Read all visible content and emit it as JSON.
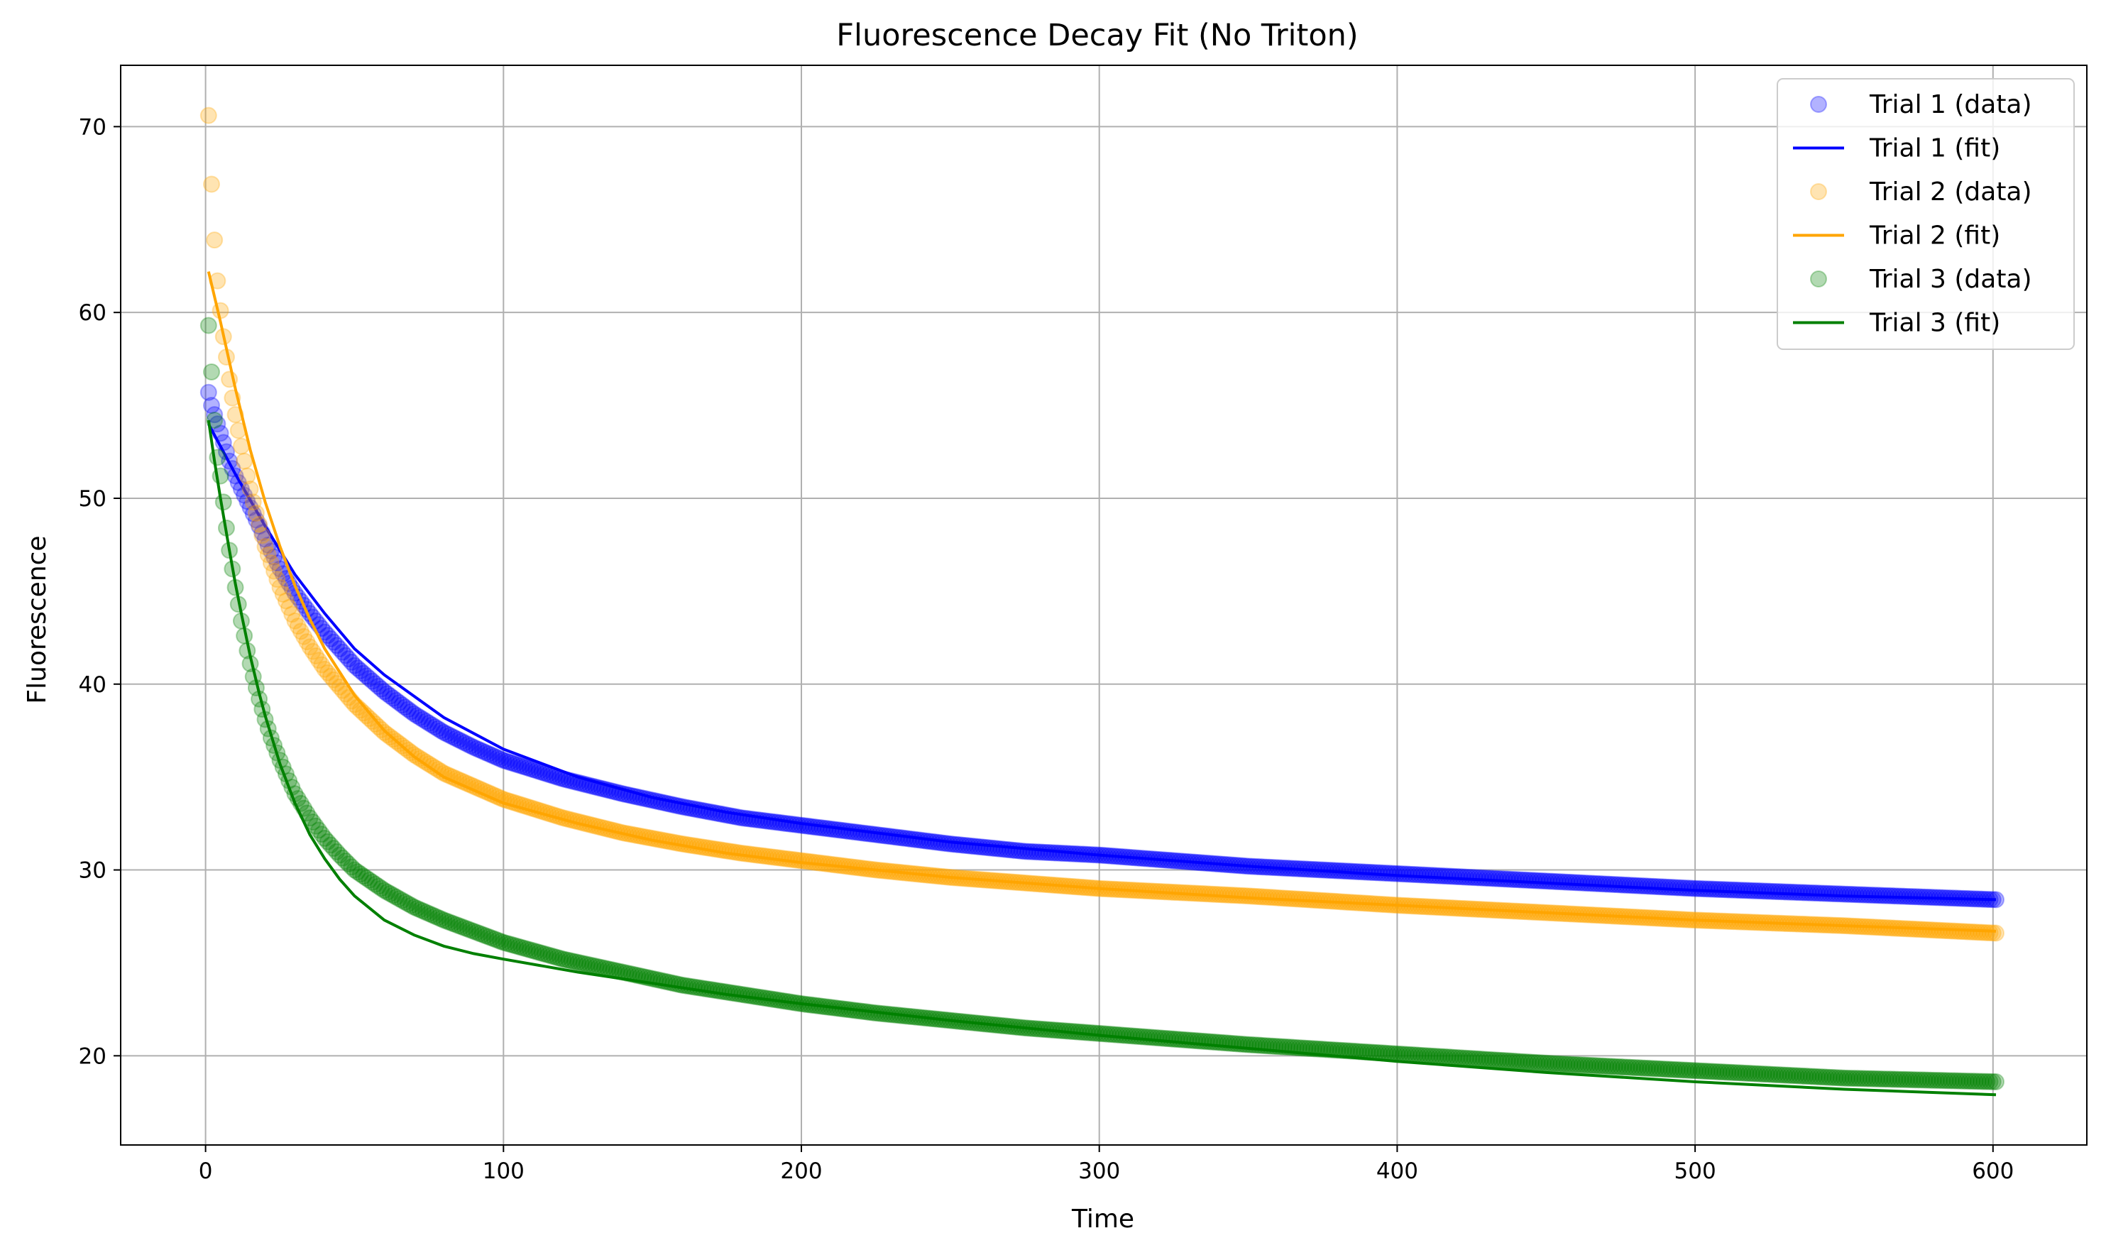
{
  "chart_data": {
    "type": "scatter",
    "title": "Fluorescence Decay Fit (No Triton)",
    "xlabel": "Time",
    "ylabel": "Fluorescence",
    "xlim": [
      -28.5,
      631.5
    ],
    "ylim": [
      15.2,
      73.3
    ],
    "xticks": [
      0,
      100,
      200,
      300,
      400,
      500,
      600
    ],
    "yticks": [
      20,
      30,
      40,
      50,
      60,
      70
    ],
    "grid": true,
    "legend_position": "top-right",
    "x_range_data": [
      1,
      601
    ],
    "series": [
      {
        "name": "Trial 1 (data)",
        "kind": "scatter",
        "color": "#0000ff",
        "x": [
          1,
          2,
          3,
          4,
          5,
          6,
          8,
          10,
          12,
          15,
          18,
          20,
          25,
          30,
          35,
          40,
          50,
          60,
          70,
          80,
          90,
          100,
          120,
          140,
          160,
          180,
          200,
          225,
          250,
          275,
          300,
          350,
          400,
          450,
          500,
          550,
          601
        ],
        "y": [
          55.7,
          55.0,
          54.5,
          54.0,
          53.5,
          53.0,
          52.0,
          51.2,
          50.5,
          49.5,
          48.5,
          47.8,
          46.2,
          44.9,
          43.8,
          42.8,
          41.0,
          39.6,
          38.4,
          37.4,
          36.6,
          35.9,
          34.9,
          34.1,
          33.4,
          32.8,
          32.4,
          31.9,
          31.4,
          31.0,
          30.8,
          30.2,
          29.8,
          29.4,
          29.0,
          28.7,
          28.4
        ]
      },
      {
        "name": "Trial 1 (fit)",
        "kind": "line",
        "color": "#0000ff",
        "x": [
          1,
          5,
          10,
          15,
          20,
          25,
          30,
          40,
          50,
          60,
          80,
          100,
          125,
          150,
          175,
          200,
          250,
          300,
          350,
          400,
          450,
          500,
          550,
          601
        ],
        "y": [
          54.0,
          52.8,
          51.3,
          49.9,
          48.5,
          47.2,
          45.9,
          43.8,
          41.9,
          40.5,
          38.2,
          36.5,
          35.0,
          33.9,
          33.1,
          32.5,
          31.5,
          30.8,
          30.2,
          29.7,
          29.3,
          28.9,
          28.6,
          28.4
        ]
      },
      {
        "name": "Trial 2 (data)",
        "kind": "scatter",
        "color": "#ffa500",
        "x": [
          1,
          2,
          3,
          4,
          5,
          6,
          7,
          8,
          9,
          10,
          12,
          14,
          16,
          18,
          20,
          25,
          30,
          35,
          40,
          50,
          60,
          70,
          80,
          90,
          100,
          120,
          140,
          160,
          180,
          200,
          225,
          250,
          275,
          300,
          350,
          400,
          450,
          500,
          550,
          601
        ],
        "y": [
          70.6,
          66.9,
          63.9,
          61.7,
          60.1,
          58.7,
          57.6,
          56.4,
          55.4,
          54.5,
          52.8,
          51.2,
          49.8,
          48.6,
          47.4,
          45.2,
          43.4,
          42.0,
          40.8,
          38.9,
          37.4,
          36.2,
          35.2,
          34.5,
          33.8,
          32.8,
          32.0,
          31.4,
          30.9,
          30.5,
          30.0,
          29.6,
          29.3,
          29.0,
          28.6,
          28.1,
          27.7,
          27.3,
          27.0,
          26.6
        ]
      },
      {
        "name": "Trial 2 (fit)",
        "kind": "line",
        "color": "#ffa500",
        "x": [
          1,
          5,
          10,
          15,
          20,
          25,
          30,
          35,
          40,
          50,
          60,
          70,
          80,
          100,
          125,
          150,
          175,
          200,
          250,
          300,
          350,
          400,
          450,
          500,
          550,
          601
        ],
        "y": [
          62.2,
          59.5,
          55.9,
          52.6,
          49.8,
          47.4,
          45.3,
          43.5,
          41.9,
          39.4,
          37.5,
          36.1,
          35.0,
          33.6,
          32.5,
          31.6,
          30.9,
          30.4,
          29.6,
          29.0,
          28.5,
          28.1,
          27.7,
          27.3,
          27.0,
          26.7
        ]
      },
      {
        "name": "Trial 3 (data)",
        "kind": "scatter",
        "color": "#008000",
        "x": [
          1,
          2,
          3,
          4,
          5,
          6,
          7,
          8,
          9,
          10,
          11,
          12,
          13,
          14,
          15,
          16,
          18,
          20,
          22,
          25,
          28,
          30,
          35,
          40,
          45,
          50,
          60,
          70,
          80,
          90,
          100,
          120,
          140,
          160,
          180,
          200,
          225,
          250,
          275,
          300,
          350,
          400,
          450,
          500,
          550,
          601
        ],
        "y": [
          59.3,
          56.8,
          54.2,
          52.2,
          51.2,
          49.8,
          48.4,
          47.2,
          46.2,
          45.2,
          44.3,
          43.4,
          42.6,
          41.8,
          41.1,
          40.4,
          39.2,
          38.1,
          37.1,
          35.9,
          34.8,
          34.1,
          32.8,
          31.7,
          30.8,
          30.0,
          28.9,
          28.0,
          27.3,
          26.7,
          26.1,
          25.2,
          24.5,
          23.8,
          23.3,
          22.8,
          22.3,
          21.9,
          21.5,
          21.2,
          20.6,
          20.1,
          19.6,
          19.2,
          18.8,
          18.6
        ]
      },
      {
        "name": "Trial 3 (fit)",
        "kind": "line",
        "color": "#008000",
        "x": [
          1,
          3,
          5,
          8,
          10,
          12,
          15,
          18,
          20,
          25,
          30,
          35,
          40,
          45,
          50,
          60,
          70,
          80,
          90,
          100,
          125,
          150,
          175,
          200,
          250,
          300,
          350,
          400,
          450,
          500,
          550,
          601
        ],
        "y": [
          54.2,
          52.0,
          50.0,
          47.2,
          45.4,
          43.8,
          41.5,
          39.5,
          38.3,
          35.7,
          33.6,
          31.9,
          30.6,
          29.5,
          28.6,
          27.3,
          26.5,
          25.9,
          25.5,
          25.2,
          24.5,
          23.9,
          23.3,
          22.8,
          21.9,
          21.1,
          20.4,
          19.7,
          19.1,
          18.6,
          18.2,
          17.9
        ]
      }
    ]
  }
}
